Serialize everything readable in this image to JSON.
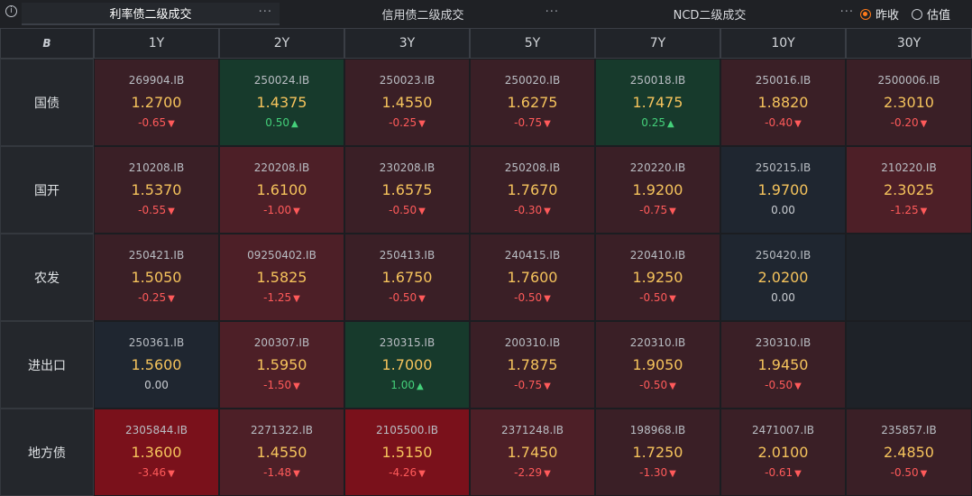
{
  "tabs": [
    {
      "label": "利率债二级成交",
      "active": true
    },
    {
      "label": "信用债二级成交",
      "active": false
    },
    {
      "label": "NCD二级成交",
      "active": false
    }
  ],
  "more_label": "···",
  "radio": [
    {
      "label": "昨收",
      "checked": true
    },
    {
      "label": "估值",
      "checked": false
    }
  ],
  "corner_icon": "B",
  "columns": [
    "1Y",
    "2Y",
    "3Y",
    "5Y",
    "7Y",
    "10Y",
    "30Y"
  ],
  "rows": [
    {
      "label": "国债",
      "cells": [
        {
          "code": "269904.IB",
          "rate": "1.2700",
          "chg": "-0.65",
          "dir": "down",
          "tone": "r1"
        },
        {
          "code": "250024.IB",
          "rate": "1.4375",
          "chg": "0.50",
          "dir": "up",
          "tone": "g"
        },
        {
          "code": "250023.IB",
          "rate": "1.4550",
          "chg": "-0.25",
          "dir": "down",
          "tone": "r1"
        },
        {
          "code": "250020.IB",
          "rate": "1.6275",
          "chg": "-0.75",
          "dir": "down",
          "tone": "r1"
        },
        {
          "code": "250018.IB",
          "rate": "1.7475",
          "chg": "0.25",
          "dir": "up",
          "tone": "g"
        },
        {
          "code": "250016.IB",
          "rate": "1.8820",
          "chg": "-0.40",
          "dir": "down",
          "tone": "r1"
        },
        {
          "code": "2500006.IB",
          "rate": "2.3010",
          "chg": "-0.20",
          "dir": "down",
          "tone": "r1"
        }
      ]
    },
    {
      "label": "国开",
      "cells": [
        {
          "code": "210208.IB",
          "rate": "1.5370",
          "chg": "-0.55",
          "dir": "down",
          "tone": "r1"
        },
        {
          "code": "220208.IB",
          "rate": "1.6100",
          "chg": "-1.00",
          "dir": "down",
          "tone": "r2"
        },
        {
          "code": "230208.IB",
          "rate": "1.6575",
          "chg": "-0.50",
          "dir": "down",
          "tone": "r1"
        },
        {
          "code": "250208.IB",
          "rate": "1.7670",
          "chg": "-0.30",
          "dir": "down",
          "tone": "r1"
        },
        {
          "code": "220220.IB",
          "rate": "1.9200",
          "chg": "-0.75",
          "dir": "down",
          "tone": "r1"
        },
        {
          "code": "250215.IB",
          "rate": "1.9700",
          "chg": "0.00",
          "dir": "flat",
          "tone": "n"
        },
        {
          "code": "210220.IB",
          "rate": "2.3025",
          "chg": "-1.25",
          "dir": "down",
          "tone": "r2"
        }
      ]
    },
    {
      "label": "农发",
      "cells": [
        {
          "code": "250421.IB",
          "rate": "1.5050",
          "chg": "-0.25",
          "dir": "down",
          "tone": "r1"
        },
        {
          "code": "09250402.IB",
          "rate": "1.5825",
          "chg": "-1.25",
          "dir": "down",
          "tone": "r2"
        },
        {
          "code": "250413.IB",
          "rate": "1.6750",
          "chg": "-0.50",
          "dir": "down",
          "tone": "r1"
        },
        {
          "code": "240415.IB",
          "rate": "1.7600",
          "chg": "-0.50",
          "dir": "down",
          "tone": "r1"
        },
        {
          "code": "220410.IB",
          "rate": "1.9250",
          "chg": "-0.50",
          "dir": "down",
          "tone": "r1"
        },
        {
          "code": "250420.IB",
          "rate": "2.0200",
          "chg": "0.00",
          "dir": "flat",
          "tone": "n"
        },
        null
      ]
    },
    {
      "label": "进出口",
      "cells": [
        {
          "code": "250361.IB",
          "rate": "1.5600",
          "chg": "0.00",
          "dir": "flat",
          "tone": "n"
        },
        {
          "code": "200307.IB",
          "rate": "1.5950",
          "chg": "-1.50",
          "dir": "down",
          "tone": "r2"
        },
        {
          "code": "230315.IB",
          "rate": "1.7000",
          "chg": "1.00",
          "dir": "up",
          "tone": "g"
        },
        {
          "code": "200310.IB",
          "rate": "1.7875",
          "chg": "-0.75",
          "dir": "down",
          "tone": "r1"
        },
        {
          "code": "220310.IB",
          "rate": "1.9050",
          "chg": "-0.50",
          "dir": "down",
          "tone": "r1"
        },
        {
          "code": "230310.IB",
          "rate": "1.9450",
          "chg": "-0.50",
          "dir": "down",
          "tone": "r1"
        },
        null
      ]
    },
    {
      "label": "地方债",
      "cells": [
        {
          "code": "2305844.IB",
          "rate": "1.3600",
          "chg": "-3.46",
          "dir": "down",
          "tone": "r3"
        },
        {
          "code": "2271322.IB",
          "rate": "1.4550",
          "chg": "-1.48",
          "dir": "down",
          "tone": "r2"
        },
        {
          "code": "2105500.IB",
          "rate": "1.5150",
          "chg": "-4.26",
          "dir": "down",
          "tone": "r3"
        },
        {
          "code": "2371248.IB",
          "rate": "1.7450",
          "chg": "-2.29",
          "dir": "down",
          "tone": "r2"
        },
        {
          "code": "198968.IB",
          "rate": "1.7250",
          "chg": "-1.30",
          "dir": "down",
          "tone": "r1"
        },
        {
          "code": "2471007.IB",
          "rate": "2.0100",
          "chg": "-0.61",
          "dir": "down",
          "tone": "r1"
        },
        {
          "code": "235857.IB",
          "rate": "2.4850",
          "chg": "-0.50",
          "dir": "down",
          "tone": "r1"
        }
      ]
    }
  ],
  "colors": {
    "r1": "#3a1f26",
    "r2": "#4d1f27",
    "r3": "#7a111b",
    "g": "#173a2c",
    "n": "#1f2630",
    "empty": "#1e2228"
  }
}
